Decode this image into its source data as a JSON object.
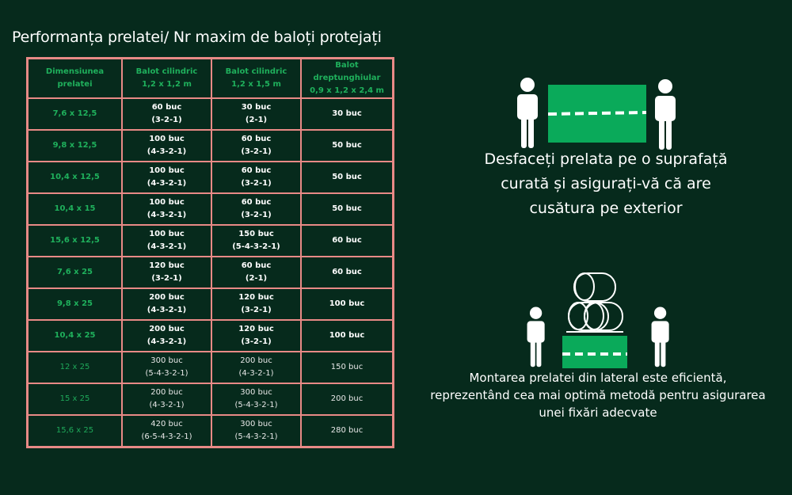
{
  "title": "Performanța prelatei/ Nr maxim de baloți protejați",
  "table": {
    "headers": [
      [
        "Dimensiunea prelatei",
        ""
      ],
      [
        "Balot cilindric",
        "1,2 x 1,2 m"
      ],
      [
        "Balot cilindric",
        "1,2 x 1,5 m"
      ],
      [
        "Balot dreptunghiular",
        "0,9 x 1,2 x 2,4 m"
      ]
    ],
    "rows": [
      [
        "7,6 x 12,5",
        [
          "60 buc",
          "(3-2-1)"
        ],
        [
          "30 buc",
          "(2-1)"
        ],
        "30 buc"
      ],
      [
        "9,8 x 12,5",
        [
          "100 buc",
          "(4-3-2-1)"
        ],
        [
          "60 buc",
          "(3-2-1)"
        ],
        "50 buc"
      ],
      [
        "10,4 x 12,5",
        [
          "100 buc",
          "(4-3-2-1)"
        ],
        [
          "60 buc",
          "(3-2-1)"
        ],
        "50 buc"
      ],
      [
        "10,4 x 15",
        [
          "100 buc",
          "(4-3-2-1)"
        ],
        [
          "60 buc",
          "(3-2-1)"
        ],
        "50 buc"
      ],
      [
        "15,6 x 12,5",
        [
          "100 buc",
          "(4-3-2-1)"
        ],
        [
          "150 buc",
          "(5-4-3-2-1)"
        ],
        "60 buc"
      ],
      [
        "7,6 x 25",
        [
          "120 buc",
          "(3-2-1)"
        ],
        [
          "60 buc",
          "(2-1)"
        ],
        "60 buc"
      ],
      [
        "9,8 x 25",
        [
          "200 buc",
          "(4-3-2-1)"
        ],
        [
          "120 buc",
          "(3-2-1)"
        ],
        "100 buc"
      ],
      [
        "10,4 x 25",
        [
          "200 buc",
          "(4-3-2-1)"
        ],
        [
          "120 buc",
          "(3-2-1)"
        ],
        "100 buc"
      ],
      [
        "12 x 25",
        [
          "300 buc",
          "(5-4-3-2-1)"
        ],
        [
          "200 buc",
          "(4-3-2-1)"
        ],
        "150 buc"
      ],
      [
        "15 x 25",
        [
          "200 buc",
          "(4-3-2-1)"
        ],
        [
          "300 buc",
          "(5-4-3-2-1)"
        ],
        "200 buc"
      ],
      [
        "15,6 x 25",
        [
          "420 buc",
          "(6-5-4-3-2-1)"
        ],
        [
          "300 buc",
          "(5-4-3-2-1)"
        ],
        "280 buc"
      ]
    ]
  },
  "caption1": [
    "Desfaceți prelata pe o suprafață",
    "curată și asigurați-vă că are",
    "cusătura pe exterior"
  ],
  "caption2": [
    "Montarea prelatei din lateral este eficientă,",
    "reprezentând cea mai optimă metodă pentru asigurarea",
    "unei fixări adecvate"
  ],
  "colors": {
    "background": "#062a1c",
    "accent": "#0aaa5a",
    "border": "#e88a86"
  },
  "icons": [
    "person-icon",
    "tarp-icon",
    "hay-bales-icon"
  ]
}
